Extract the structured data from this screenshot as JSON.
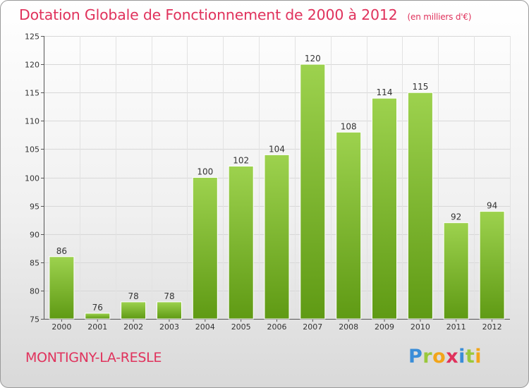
{
  "header": {
    "title": "Dotation Globale de Fonctionnement de 2000 à 2012",
    "unit": "(en milliers d'€)"
  },
  "footer": {
    "commune": "MONTIGNY-LA-RESLE",
    "logo": "Proxiti"
  },
  "colors": {
    "accent": "#e0325c",
    "bar_light": "#9dd24e",
    "bar_dark": "#5f9a14"
  },
  "chart_data": {
    "type": "bar",
    "title": "Dotation Globale de Fonctionnement de 2000 à 2012",
    "subtitle": "(en milliers d'€)",
    "xlabel": "",
    "ylabel": "",
    "categories": [
      "2000",
      "2001",
      "2002",
      "2003",
      "2004",
      "2005",
      "2006",
      "2007",
      "2008",
      "2009",
      "2010",
      "2011",
      "2012"
    ],
    "values": [
      86,
      76,
      78,
      78,
      100,
      102,
      104,
      120,
      108,
      114,
      115,
      92,
      94
    ],
    "ylim": [
      75,
      125
    ],
    "yticks": [
      75,
      80,
      85,
      90,
      95,
      100,
      105,
      110,
      115,
      120,
      125
    ],
    "grid": true,
    "data_labels": true
  }
}
